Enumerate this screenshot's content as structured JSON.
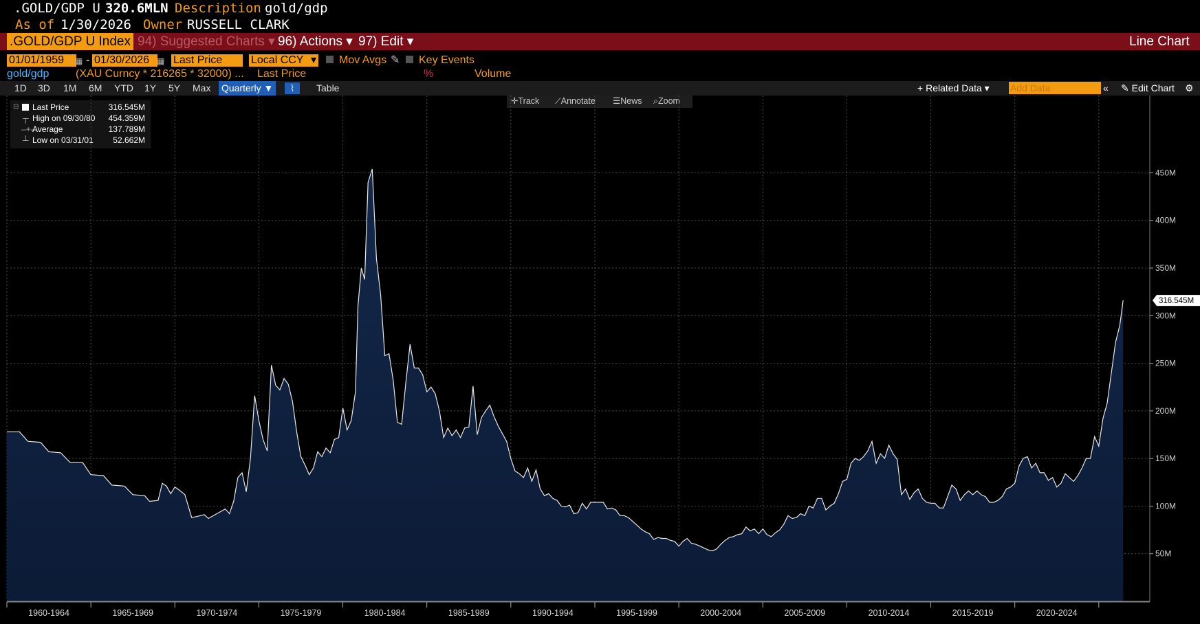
{
  "header": {
    "ticker_short": ".GOLD/GDP U",
    "value": "320.6MLN",
    "desc_label": "Description",
    "desc_value": "gold/gdp",
    "asof_label": "As of",
    "asof_value": "1/30/2026",
    "owner_label": "Owner",
    "owner_value": "RUSSELL CLARK"
  },
  "toolbar": {
    "security": ".GOLD/GDP U Index",
    "suggested_num": "94)",
    "suggested": "Suggested Charts",
    "actions_num": "96)",
    "actions": "Actions",
    "edit_num": "97)",
    "edit": "Edit",
    "chart_type": "Line Chart"
  },
  "controls": {
    "start_date": "01/01/1959",
    "end_date": "01/30/2026",
    "price_field": "Last Price",
    "currency": "Local CCY",
    "mov_avgs": "Mov Avgs",
    "key_events": "Key Events"
  },
  "series_row": {
    "name": "gold/gdp",
    "formula": "(XAU Curncy * 216265 * 32000) ...",
    "field": "Last Price",
    "pct": "%",
    "volume": "Volume"
  },
  "range_bar": {
    "ranges": [
      "1D",
      "3D",
      "1M",
      "6M",
      "YTD",
      "1Y",
      "5Y",
      "Max"
    ],
    "frequency": "Quarterly",
    "table": "Table",
    "related_data": "Related Data",
    "add_data_placeholder": "Add Data",
    "edit_chart": "Edit Chart"
  },
  "tools": {
    "track": "Track",
    "annotate": "Annotate",
    "news": "News",
    "zoom": "Zoom"
  },
  "legend": {
    "last_label": "Last Price",
    "last_value": "316.545M",
    "high_label": "High on 09/30/80",
    "high_value": "454.359M",
    "avg_label": "Average",
    "avg_value": "137.789M",
    "low_label": "Low on 03/31/01",
    "low_value": "52.662M"
  },
  "colors": {
    "accent_orange": "#f39c12",
    "toolbar_red": "#7a0f1a",
    "area_fill": "#0f2244",
    "line": "#e8e8e8",
    "selected_blue": "#1f5fb5"
  },
  "chart_data": {
    "type": "area",
    "xlim": [
      1959.0,
      2026.3
    ],
    "ylim": [
      0,
      490
    ],
    "last_label": "316.545M",
    "yticks": [
      {
        "v": 50,
        "label": "50M"
      },
      {
        "v": 100,
        "label": "100M"
      },
      {
        "v": 150,
        "label": "150M"
      },
      {
        "v": 200,
        "label": "200M"
      },
      {
        "v": 250,
        "label": "250M"
      },
      {
        "v": 300,
        "label": "300M"
      },
      {
        "v": 350,
        "label": "350M"
      },
      {
        "v": 400,
        "label": "400M"
      },
      {
        "v": 450,
        "label": "450M"
      }
    ],
    "xticks": [
      "1960-1964",
      "1965-1969",
      "1970-1974",
      "1975-1979",
      "1980-1984",
      "1985-1989",
      "1990-1994",
      "1995-1999",
      "2000-2004",
      "2005-2009",
      "2010-2014",
      "2015-2019",
      "2020-2024"
    ],
    "series": [
      {
        "points": [
          [
            1959.0,
            178
          ],
          [
            1959.75,
            178
          ],
          [
            1960.25,
            168
          ],
          [
            1961.0,
            167
          ],
          [
            1961.5,
            157
          ],
          [
            1962.2,
            156
          ],
          [
            1962.75,
            146
          ],
          [
            1963.5,
            146
          ],
          [
            1964.0,
            133
          ],
          [
            1964.75,
            132
          ],
          [
            1965.25,
            122
          ],
          [
            1966.0,
            121
          ],
          [
            1966.5,
            112
          ],
          [
            1967.2,
            111
          ],
          [
            1967.5,
            105
          ],
          [
            1968.0,
            106
          ],
          [
            1968.25,
            124
          ],
          [
            1968.5,
            121
          ],
          [
            1968.75,
            113
          ],
          [
            1969.0,
            120
          ],
          [
            1969.25,
            117
          ],
          [
            1969.6,
            112
          ],
          [
            1970.0,
            88
          ],
          [
            1970.3,
            89
          ],
          [
            1970.75,
            91
          ],
          [
            1971.0,
            87
          ],
          [
            1971.5,
            92
          ],
          [
            1972.0,
            97
          ],
          [
            1972.25,
            92
          ],
          [
            1972.5,
            105
          ],
          [
            1972.75,
            130
          ],
          [
            1973.0,
            135
          ],
          [
            1973.25,
            115
          ],
          [
            1973.5,
            150
          ],
          [
            1973.75,
            216
          ],
          [
            1974.0,
            190
          ],
          [
            1974.25,
            170
          ],
          [
            1974.5,
            158
          ],
          [
            1974.75,
            248
          ],
          [
            1975.0,
            227
          ],
          [
            1975.25,
            222
          ],
          [
            1975.5,
            234
          ],
          [
            1975.75,
            228
          ],
          [
            1976.0,
            210
          ],
          [
            1976.25,
            178
          ],
          [
            1976.5,
            152
          ],
          [
            1976.75,
            143
          ],
          [
            1977.0,
            133
          ],
          [
            1977.25,
            140
          ],
          [
            1977.5,
            157
          ],
          [
            1977.75,
            152
          ],
          [
            1978.0,
            161
          ],
          [
            1978.25,
            156
          ],
          [
            1978.5,
            170
          ],
          [
            1978.75,
            172
          ],
          [
            1979.0,
            203
          ],
          [
            1979.25,
            180
          ],
          [
            1979.5,
            190
          ],
          [
            1979.75,
            220
          ],
          [
            1979.9,
            310
          ],
          [
            1980.1,
            350
          ],
          [
            1980.3,
            338
          ],
          [
            1980.5,
            440
          ],
          [
            1980.75,
            454
          ],
          [
            1981.0,
            360
          ],
          [
            1981.25,
            322
          ],
          [
            1981.5,
            258
          ],
          [
            1981.75,
            260
          ],
          [
            1982.0,
            232
          ],
          [
            1982.25,
            188
          ],
          [
            1982.5,
            186
          ],
          [
            1982.75,
            230
          ],
          [
            1983.0,
            270
          ],
          [
            1983.25,
            245
          ],
          [
            1983.5,
            245
          ],
          [
            1983.75,
            238
          ],
          [
            1984.0,
            220
          ],
          [
            1984.25,
            225
          ],
          [
            1984.5,
            218
          ],
          [
            1984.75,
            200
          ],
          [
            1985.0,
            172
          ],
          [
            1985.25,
            182
          ],
          [
            1985.5,
            174
          ],
          [
            1985.75,
            180
          ],
          [
            1986.0,
            172
          ],
          [
            1986.25,
            182
          ],
          [
            1986.5,
            183
          ],
          [
            1986.75,
            226
          ],
          [
            1987.0,
            175
          ],
          [
            1987.25,
            193
          ],
          [
            1987.5,
            200
          ],
          [
            1987.75,
            206
          ],
          [
            1988.0,
            194
          ],
          [
            1988.25,
            184
          ],
          [
            1988.5,
            176
          ],
          [
            1988.75,
            168
          ],
          [
            1989.0,
            150
          ],
          [
            1989.25,
            137
          ],
          [
            1989.5,
            134
          ],
          [
            1989.75,
            130
          ],
          [
            1990.0,
            140
          ],
          [
            1990.25,
            126
          ],
          [
            1990.5,
            138
          ],
          [
            1990.75,
            118
          ],
          [
            1991.0,
            111
          ],
          [
            1991.25,
            113
          ],
          [
            1991.5,
            108
          ],
          [
            1991.75,
            106
          ],
          [
            1992.0,
            100
          ],
          [
            1992.25,
            99
          ],
          [
            1992.5,
            101
          ],
          [
            1992.75,
            92
          ],
          [
            1993.0,
            93
          ],
          [
            1993.25,
            103
          ],
          [
            1993.5,
            97
          ],
          [
            1993.75,
            104
          ],
          [
            1994.0,
            104
          ],
          [
            1994.25,
            104
          ],
          [
            1994.5,
            104
          ],
          [
            1994.75,
            97
          ],
          [
            1995.0,
            98
          ],
          [
            1995.25,
            96
          ],
          [
            1995.5,
            90
          ],
          [
            1995.75,
            90
          ],
          [
            1996.0,
            88
          ],
          [
            1996.25,
            84
          ],
          [
            1996.5,
            80
          ],
          [
            1996.75,
            76
          ],
          [
            1997.0,
            73
          ],
          [
            1997.25,
            71
          ],
          [
            1997.5,
            65
          ],
          [
            1997.75,
            67
          ],
          [
            1998.0,
            66
          ],
          [
            1998.25,
            66
          ],
          [
            1998.5,
            64
          ],
          [
            1998.75,
            63
          ],
          [
            1999.0,
            58
          ],
          [
            1999.25,
            63
          ],
          [
            1999.5,
            66
          ],
          [
            1999.75,
            61
          ],
          [
            2000.0,
            60
          ],
          [
            2000.25,
            58
          ],
          [
            2000.5,
            56
          ],
          [
            2000.75,
            54
          ],
          [
            2001.0,
            53
          ],
          [
            2001.25,
            55
          ],
          [
            2001.5,
            60
          ],
          [
            2001.75,
            64
          ],
          [
            2002.0,
            67
          ],
          [
            2002.25,
            68
          ],
          [
            2002.5,
            70
          ],
          [
            2002.75,
            71
          ],
          [
            2003.0,
            78
          ],
          [
            2003.25,
            74
          ],
          [
            2003.5,
            76
          ],
          [
            2003.75,
            71
          ],
          [
            2004.0,
            76
          ],
          [
            2004.25,
            70
          ],
          [
            2004.5,
            68
          ],
          [
            2004.75,
            72
          ],
          [
            2005.0,
            75
          ],
          [
            2005.25,
            81
          ],
          [
            2005.5,
            90
          ],
          [
            2005.75,
            87
          ],
          [
            2006.0,
            88
          ],
          [
            2006.25,
            92
          ],
          [
            2006.5,
            90
          ],
          [
            2006.75,
            100
          ],
          [
            2007.0,
            98
          ],
          [
            2007.25,
            108
          ],
          [
            2007.5,
            108
          ],
          [
            2007.75,
            96
          ],
          [
            2008.0,
            100
          ],
          [
            2008.25,
            103
          ],
          [
            2008.5,
            113
          ],
          [
            2008.75,
            126
          ],
          [
            2009.0,
            128
          ],
          [
            2009.25,
            145
          ],
          [
            2009.5,
            150
          ],
          [
            2009.75,
            148
          ],
          [
            2010.0,
            152
          ],
          [
            2010.25,
            158
          ],
          [
            2010.5,
            168
          ],
          [
            2010.75,
            145
          ],
          [
            2011.0,
            155
          ],
          [
            2011.25,
            150
          ],
          [
            2011.5,
            164
          ],
          [
            2011.75,
            155
          ],
          [
            2012.0,
            149
          ],
          [
            2012.25,
            112
          ],
          [
            2012.5,
            118
          ],
          [
            2012.75,
            107
          ],
          [
            2013.0,
            114
          ],
          [
            2013.25,
            118
          ],
          [
            2013.5,
            108
          ],
          [
            2013.75,
            104
          ],
          [
            2014.0,
            103
          ],
          [
            2014.25,
            103
          ],
          [
            2014.5,
            98
          ],
          [
            2014.75,
            98
          ],
          [
            2015.0,
            110
          ],
          [
            2015.25,
            122
          ],
          [
            2015.5,
            118
          ],
          [
            2015.75,
            106
          ],
          [
            2016.0,
            112
          ],
          [
            2016.25,
            116
          ],
          [
            2016.5,
            112
          ],
          [
            2016.75,
            116
          ],
          [
            2017.0,
            112
          ],
          [
            2017.25,
            110
          ],
          [
            2017.5,
            104
          ],
          [
            2017.75,
            104
          ],
          [
            2018.0,
            106
          ],
          [
            2018.25,
            110
          ],
          [
            2018.5,
            118
          ],
          [
            2018.75,
            120
          ],
          [
            2019.0,
            124
          ],
          [
            2019.25,
            142
          ],
          [
            2019.5,
            150
          ],
          [
            2019.75,
            152
          ],
          [
            2020.0,
            140
          ],
          [
            2020.25,
            145
          ],
          [
            2020.5,
            135
          ],
          [
            2020.75,
            135
          ],
          [
            2021.0,
            127
          ],
          [
            2021.25,
            130
          ],
          [
            2021.5,
            120
          ],
          [
            2021.75,
            124
          ],
          [
            2022.0,
            134
          ],
          [
            2022.25,
            130
          ],
          [
            2022.5,
            126
          ],
          [
            2022.75,
            132
          ],
          [
            2023.0,
            140
          ],
          [
            2023.25,
            150
          ],
          [
            2023.5,
            150
          ],
          [
            2023.75,
            173
          ],
          [
            2024.0,
            163
          ],
          [
            2024.25,
            192
          ],
          [
            2024.5,
            208
          ],
          [
            2024.75,
            240
          ],
          [
            2025.0,
            272
          ],
          [
            2025.25,
            290
          ],
          [
            2025.45,
            316
          ]
        ]
      }
    ]
  }
}
